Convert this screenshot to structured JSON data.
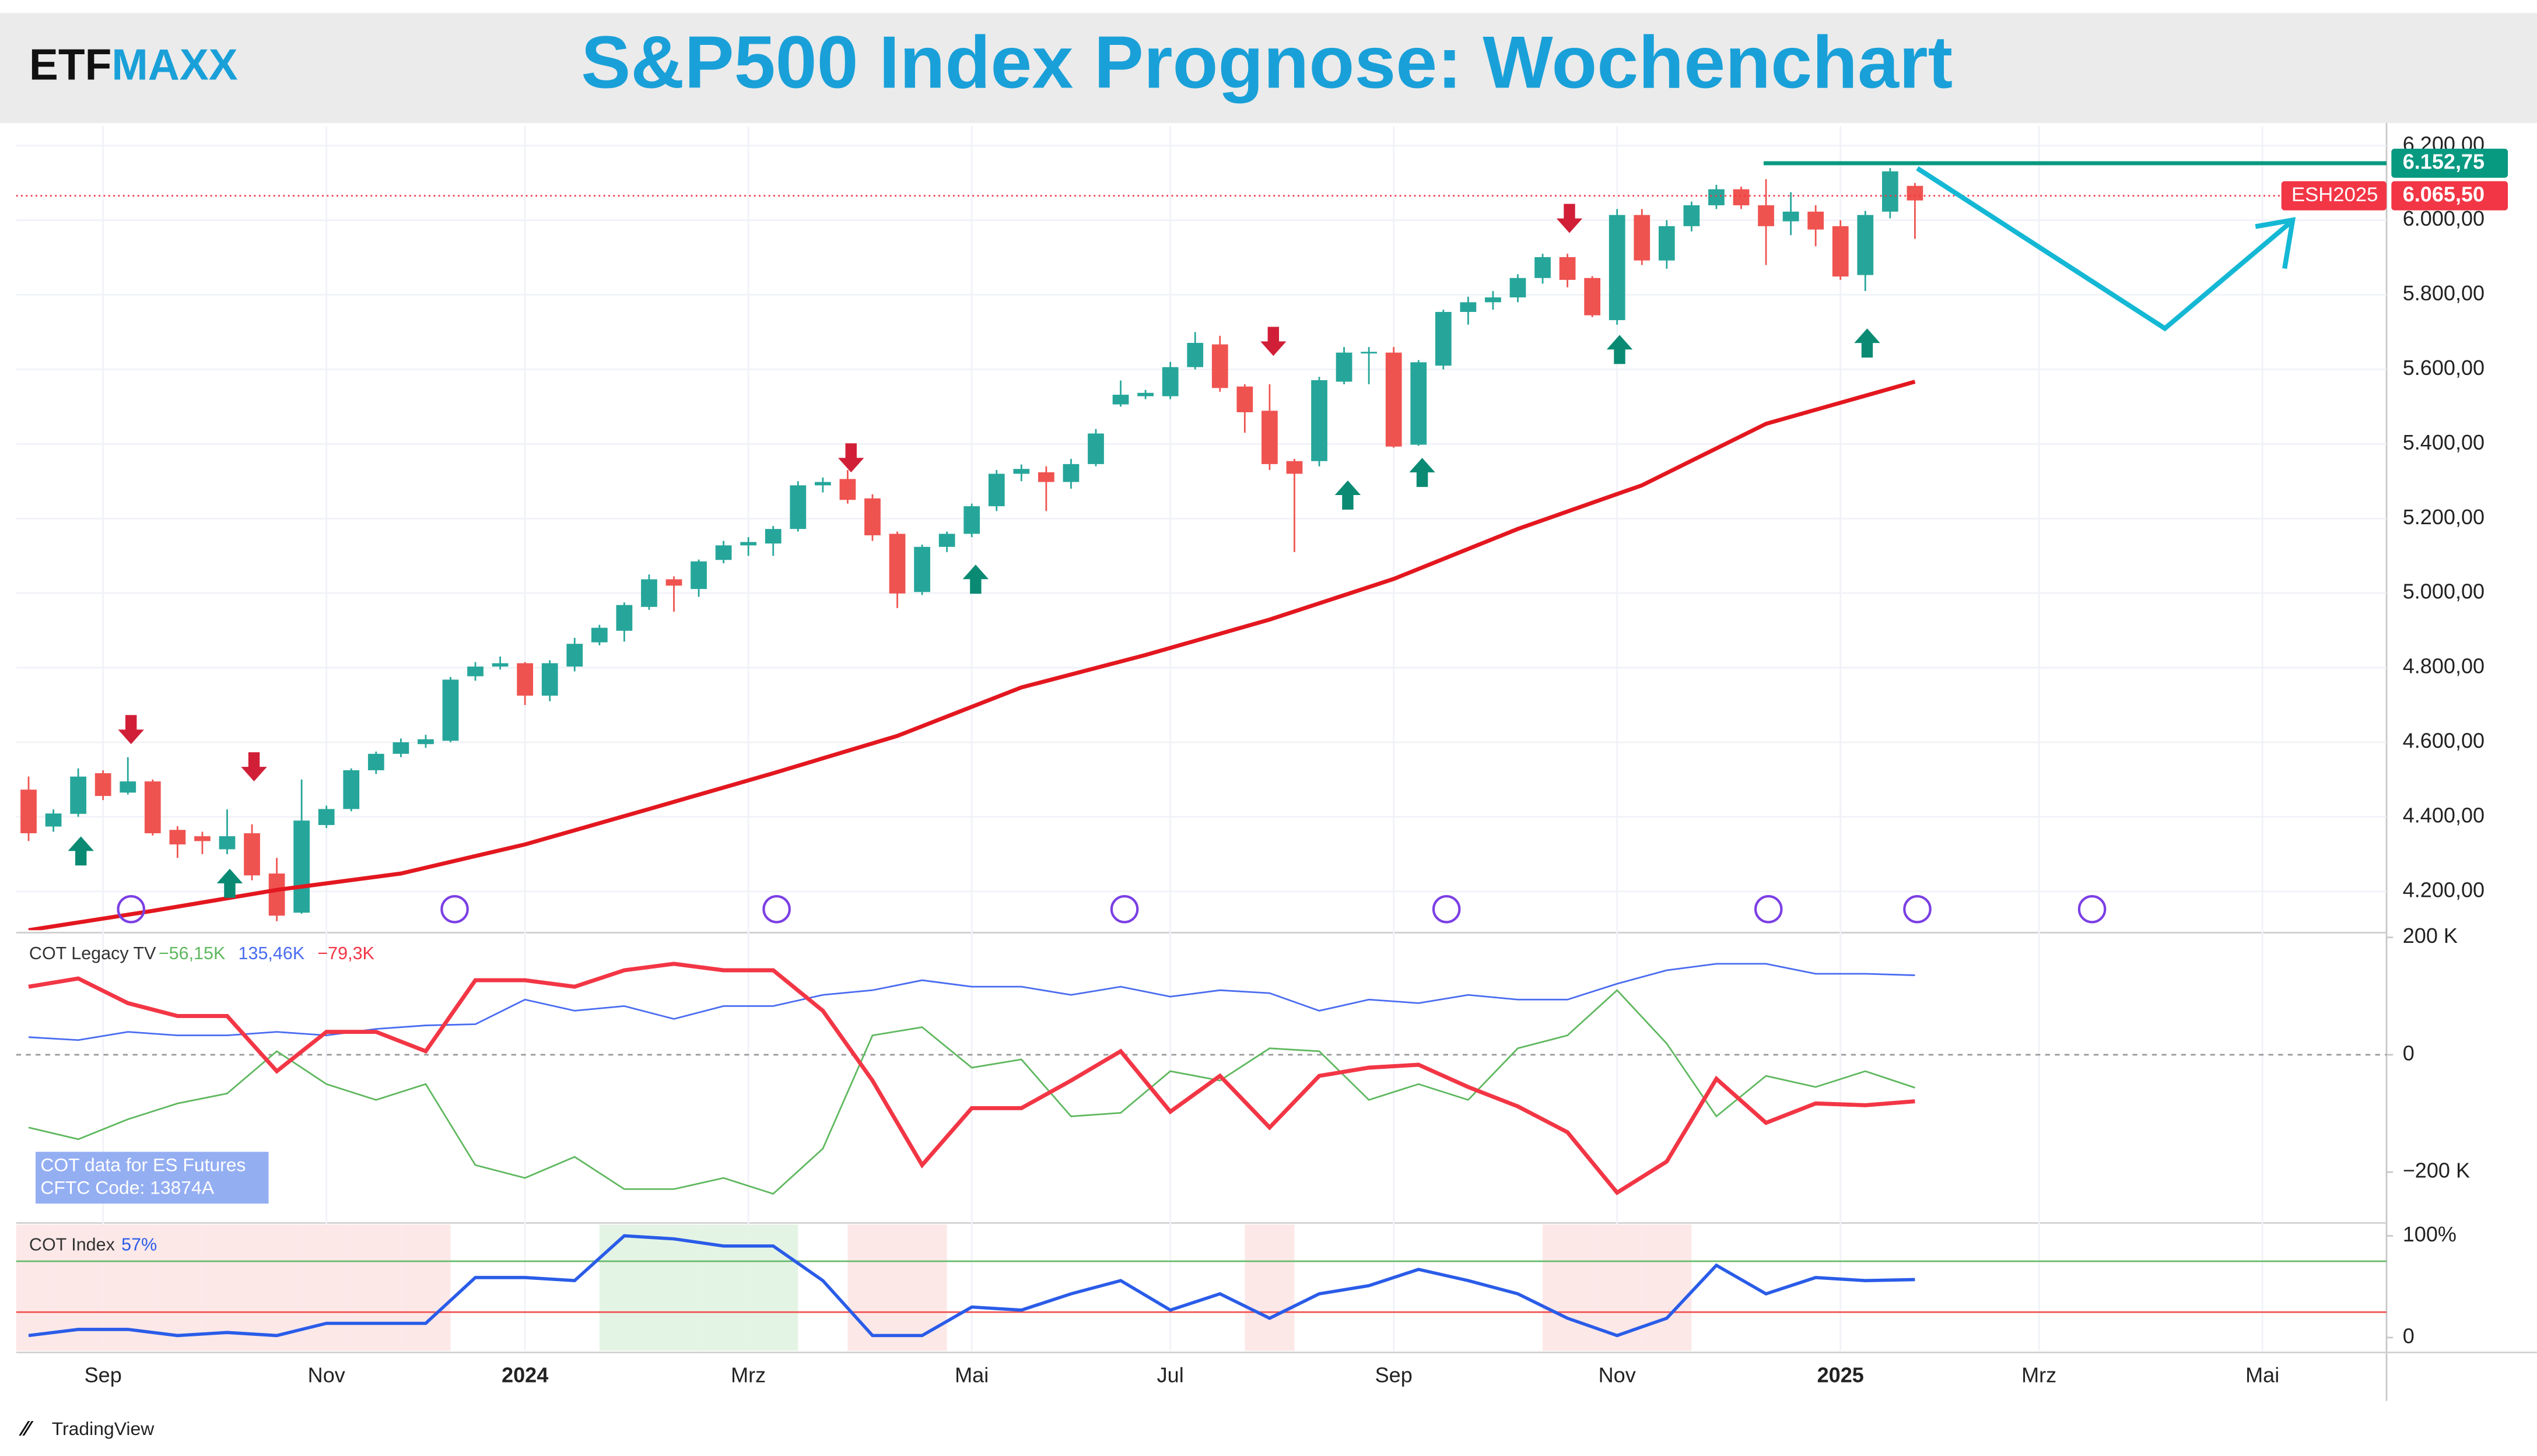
{
  "brand": {
    "part1": "ETF",
    "part2": "MAXX"
  },
  "source": "TradingView",
  "chart_data": [
    {
      "type": "candlestick",
      "title": "S&P500 Index Prognose: Wochenchart",
      "up_color": "#26a69a",
      "down_color": "#ef5350",
      "grid": true,
      "x": [
        0,
        1,
        2,
        3,
        4,
        5,
        6,
        7,
        8,
        9,
        10,
        11,
        12,
        13,
        14,
        15,
        16,
        17,
        18,
        19,
        20,
        21,
        22,
        23,
        24,
        25,
        26,
        27,
        28,
        29,
        30,
        31,
        32,
        33,
        34,
        35,
        36,
        37,
        38,
        39,
        40,
        41,
        42,
        43,
        44,
        45,
        46,
        47,
        48,
        49,
        50,
        51,
        52,
        53,
        54,
        55,
        56,
        57,
        58,
        59,
        60,
        61,
        62,
        63,
        64,
        65,
        66,
        67,
        68,
        69,
        70,
        71,
        72,
        73,
        74,
        75,
        76
      ],
      "open": [
        4473,
        4374,
        4408,
        4517,
        4465,
        4495,
        4365,
        4348,
        4313,
        4356,
        4248,
        4143,
        4378,
        4421,
        4525,
        4569,
        4595,
        4604,
        4777,
        4803,
        4812,
        4725,
        4803,
        4868,
        4899,
        4963,
        5037,
        5011,
        5089,
        5128,
        5133,
        5172,
        5289,
        5306,
        5254,
        5159,
        5003,
        5124,
        5159,
        5233,
        5320,
        5324,
        5298,
        5346,
        5506,
        5528,
        5528,
        5606,
        5667,
        5554,
        5489,
        5354,
        5354,
        5567,
        5643,
        5645,
        5398,
        5610,
        5754,
        5780,
        5793,
        5845,
        5901,
        5845,
        5732,
        6014,
        5892,
        5984,
        6040,
        6083,
        6040,
        5997,
        6023,
        5984,
        5853,
        6023,
        6092
      ],
      "high": [
        4508,
        4420,
        4530,
        4525,
        4560,
        4500,
        4375,
        4360,
        4420,
        4380,
        4290,
        4500,
        4430,
        4530,
        4575,
        4610,
        4620,
        4775,
        4815,
        4830,
        4815,
        4820,
        4880,
        4915,
        4975,
        5050,
        5045,
        5090,
        5140,
        5150,
        5180,
        5300,
        5310,
        5330,
        5265,
        5165,
        5130,
        5165,
        5240,
        5330,
        5345,
        5340,
        5360,
        5440,
        5570,
        5545,
        5620,
        5700,
        5690,
        5560,
        5560,
        5360,
        5580,
        5660,
        5660,
        5660,
        5625,
        5760,
        5795,
        5810,
        5855,
        5910,
        5910,
        5850,
        6030,
        6030,
        6000,
        6050,
        6095,
        6090,
        6110,
        6075,
        6040,
        6000,
        6025,
        6140,
        6100
      ],
      "low": [
        4335,
        4360,
        4400,
        4445,
        4460,
        4350,
        4290,
        4300,
        4300,
        4230,
        4120,
        4140,
        4370,
        4415,
        4515,
        4560,
        4585,
        4600,
        4765,
        4795,
        4700,
        4710,
        4790,
        4860,
        4870,
        4955,
        4950,
        4990,
        5080,
        5100,
        5100,
        5165,
        5270,
        5240,
        5140,
        4960,
        4995,
        5110,
        5150,
        5220,
        5300,
        5220,
        5280,
        5340,
        5500,
        5520,
        5520,
        5600,
        5540,
        5430,
        5330,
        5110,
        5340,
        5560,
        5560,
        5390,
        5395,
        5600,
        5720,
        5760,
        5780,
        5830,
        5820,
        5740,
        5720,
        5880,
        5870,
        5970,
        6030,
        6030,
        5880,
        5960,
        5930,
        5840,
        5810,
        6005,
        5950
      ],
      "close": [
        4356,
        4409,
        4508,
        4456,
        4495,
        4356,
        4326,
        4335,
        4348,
        4243,
        4135,
        4390,
        4421,
        4525,
        4569,
        4600,
        4608,
        4768,
        4803,
        4812,
        4725,
        4812,
        4864,
        4907,
        4968,
        5037,
        5020,
        5085,
        5128,
        5137,
        5172,
        5289,
        5298,
        5250,
        5155,
        4999,
        5124,
        5159,
        5233,
        5320,
        5333,
        5298,
        5346,
        5428,
        5532,
        5537,
        5606,
        5671,
        5550,
        5485,
        5346,
        5320,
        5571,
        5645,
        5647,
        5393,
        5619,
        5754,
        5780,
        5793,
        5845,
        5901,
        5840,
        5745,
        6014,
        5892,
        5984,
        6040,
        6083,
        6040,
        5984,
        6023,
        5975,
        5849,
        6014,
        6131,
        6053
      ],
      "ma": {
        "color": "#e3171f",
        "x": [
          0,
          5,
          10,
          15,
          20,
          25,
          30,
          35,
          40,
          45,
          50,
          55,
          60,
          65,
          70,
          76
        ],
        "values": [
          4096,
          4148,
          4204,
          4248,
          4326,
          4421,
          4517,
          4617,
          4747,
          4834,
          4929,
          5038,
          5172,
          5289,
          5454,
          5567
        ]
      },
      "levels": [
        {
          "value": 6152.75,
          "label": "6.152,75",
          "color": "#089981",
          "style": "solid"
        },
        {
          "value": 6065.5,
          "label": "6.065,50",
          "symbol": "ESH2025",
          "color": "#f23645",
          "style": "dotted"
        }
      ],
      "xlim": [
        -0.5,
        95
      ],
      "xticks": [
        {
          "value": 3,
          "label": "Sep"
        },
        {
          "value": 12,
          "label": "Nov"
        },
        {
          "value": 20,
          "label": "2024",
          "bold": true
        },
        {
          "value": 29,
          "label": "Mrz"
        },
        {
          "value": 38,
          "label": "Mai"
        },
        {
          "value": 46,
          "label": "Jul"
        },
        {
          "value": 55,
          "label": "Sep"
        },
        {
          "value": 64,
          "label": "Nov"
        },
        {
          "value": 73,
          "label": "2025",
          "bold": true
        },
        {
          "value": 81,
          "label": "Mrz"
        },
        {
          "value": 90,
          "label": "Mai"
        }
      ],
      "ylim": [
        4096,
        6252
      ],
      "yticks": [
        {
          "value": 4200,
          "label": "4.200,00"
        },
        {
          "value": 4400,
          "label": "4.400,00"
        },
        {
          "value": 4600,
          "label": "4.600,00"
        },
        {
          "value": 4800,
          "label": "4.800,00"
        },
        {
          "value": 5000,
          "label": "5.000,00"
        },
        {
          "value": 5200,
          "label": "5.200,00"
        },
        {
          "value": 5400,
          "label": "5.400,00"
        },
        {
          "value": 5600,
          "label": "5.600,00"
        },
        {
          "value": 5800,
          "label": "5.800,00"
        },
        {
          "value": 6000,
          "label": "6.000,00"
        },
        {
          "value": 6200,
          "label": "6.200,00"
        }
      ]
    },
    {
      "type": "line",
      "title": "COT Legacy TV",
      "baseline": 0,
      "annotation": [
        "COT data for ES Futures",
        "CFTC Code: 13874A"
      ],
      "x": [
        0,
        2,
        4,
        6,
        8,
        10,
        12,
        14,
        16,
        18,
        20,
        22,
        24,
        26,
        28,
        30,
        32,
        34,
        36,
        38,
        40,
        42,
        44,
        46,
        48,
        50,
        52,
        54,
        56,
        58,
        60,
        62,
        64,
        66,
        68,
        70,
        72,
        74,
        76
      ],
      "series": [
        {
          "color": "#5fb85f",
          "width": 1,
          "current_label": "−56,15K",
          "values": [
            -124,
            -144,
            -110,
            -83,
            -66,
            6,
            -50,
            -77,
            -50,
            -188,
            -210,
            -174,
            -229,
            -229,
            -210,
            -237,
            -160,
            33,
            47,
            -22,
            -8,
            -105,
            -99,
            -28,
            -44,
            11,
            6,
            -77,
            -50,
            -77,
            11,
            33,
            110,
            19,
            -105,
            -36,
            -55,
            -28,
            -56.15
          ]
        },
        {
          "color": "#4a6cf0",
          "width": 1,
          "current_label": "135,46K",
          "values": [
            30,
            25,
            39,
            33,
            33,
            39,
            33,
            44,
            50,
            52,
            94,
            75,
            83,
            61,
            83,
            83,
            102,
            110,
            127,
            116,
            116,
            102,
            116,
            99,
            110,
            105,
            75,
            94,
            88,
            102,
            94,
            94,
            121,
            144,
            155,
            155,
            138,
            138,
            135.46
          ]
        },
        {
          "color": "#f23645",
          "width": 2.5,
          "current_label": "−79,3K",
          "values": [
            116,
            130,
            88,
            66,
            66,
            -28,
            39,
            39,
            6,
            127,
            127,
            116,
            144,
            155,
            144,
            144,
            75,
            -44,
            -188,
            -91,
            -91,
            -44,
            6,
            -97,
            -36,
            -124,
            -36,
            -22,
            -17,
            -55,
            -88,
            -132,
            -235,
            -182,
            -41,
            -116,
            -83,
            -86,
            -79.3
          ]
        }
      ],
      "ylim": [
        -284,
        204
      ],
      "yticks": [
        {
          "value": -200,
          "label": "−200 K"
        },
        0,
        {
          "value": 200,
          "label": "200 K"
        }
      ]
    },
    {
      "type": "line",
      "title": "COT Index",
      "upper": 75,
      "lower": 25,
      "upper_color": "#66bb6a",
      "lower_color": "#ef5350",
      "x": [
        0,
        2,
        4,
        6,
        8,
        10,
        12,
        14,
        16,
        18,
        20,
        22,
        24,
        26,
        28,
        30,
        32,
        34,
        36,
        38,
        40,
        42,
        44,
        46,
        48,
        50,
        52,
        54,
        56,
        58,
        60,
        62,
        64,
        66,
        68,
        70,
        72,
        74,
        76
      ],
      "series": [
        {
          "color": "#2a5ce8",
          "width": 2,
          "current_label": "57%",
          "values": [
            2,
            8,
            8,
            2,
            5,
            2,
            14,
            14,
            14,
            59,
            59,
            56,
            100,
            97,
            90,
            90,
            56,
            2,
            2,
            30,
            27,
            43,
            56,
            27,
            43,
            19,
            43,
            51,
            67,
            56,
            43,
            19,
            2,
            19,
            71,
            43,
            59,
            56,
            57
          ]
        }
      ],
      "ylim": [
        -13,
        111
      ],
      "yticks": [
        0,
        {
          "value": 100,
          "label": "100%"
        }
      ]
    }
  ]
}
